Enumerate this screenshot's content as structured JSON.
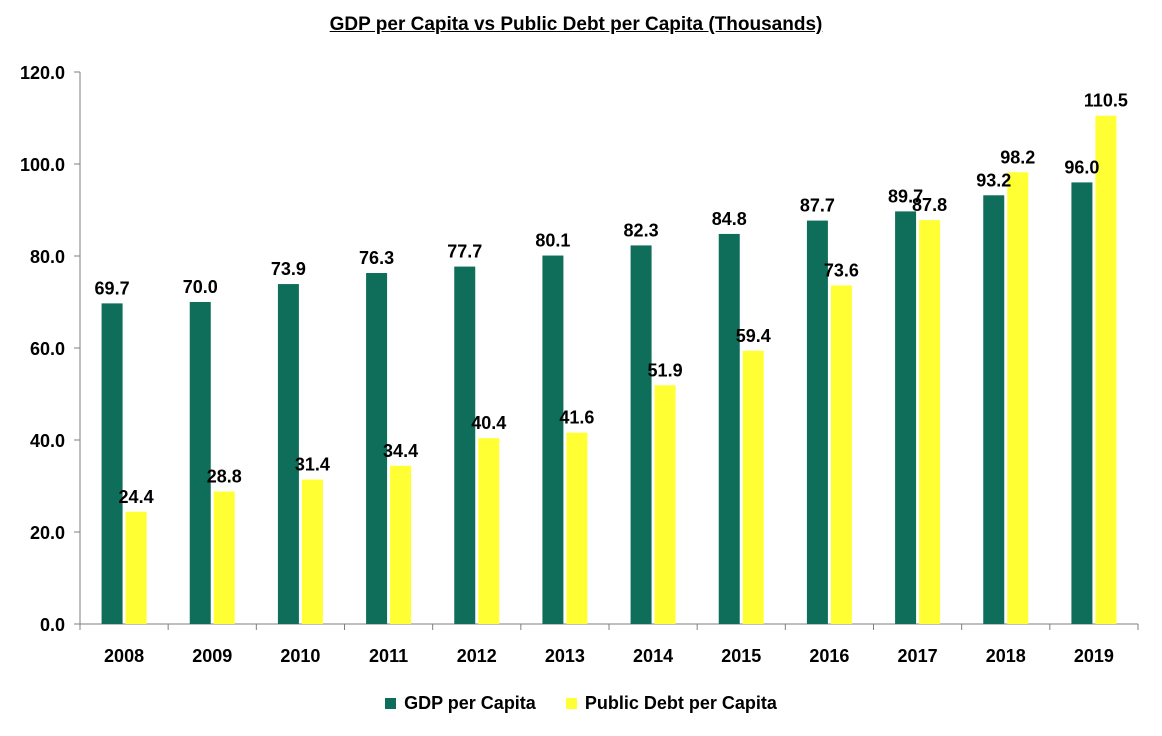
{
  "chart_data": {
    "type": "bar",
    "title": "GDP per Capita vs Public Debt per Capita (Thousands)",
    "xlabel": "",
    "ylabel": "",
    "categories": [
      "2008",
      "2009",
      "2010",
      "2011",
      "2012",
      "2013",
      "2014",
      "2015",
      "2016",
      "2017",
      "2018",
      "2019"
    ],
    "series": [
      {
        "name": "GDP per Capita",
        "color": "#0e6e5a",
        "values": [
          69.7,
          70.0,
          73.9,
          76.3,
          77.7,
          80.1,
          82.3,
          84.8,
          87.7,
          89.7,
          93.2,
          96.0
        ],
        "labels": [
          "69.7",
          "70.0",
          "73.9",
          "76.3",
          "77.7",
          "80.1",
          "82.3",
          "84.8",
          "87.7",
          "89.7",
          "93.2",
          "96.0"
        ]
      },
      {
        "name": "Public Debt per Capita",
        "color": "#ffff33",
        "values": [
          24.4,
          28.8,
          31.4,
          34.4,
          40.4,
          41.6,
          51.9,
          59.4,
          73.6,
          87.8,
          98.2,
          110.5
        ],
        "labels": [
          "24.4",
          "28.8",
          "31.4",
          "34.4",
          "40.4",
          "41.6",
          "51.9",
          "59.4",
          "73.6",
          "87.8",
          "98.2",
          "110.5"
        ]
      }
    ],
    "ylim": [
      0,
      120
    ],
    "yticks": [
      0,
      20,
      40,
      60,
      80,
      100,
      120
    ],
    "ytick_labels": [
      "0.0",
      "20.0",
      "40.0",
      "60.0",
      "80.0",
      "100.0",
      "120.0"
    ],
    "grid": false,
    "legend": "bottom"
  }
}
